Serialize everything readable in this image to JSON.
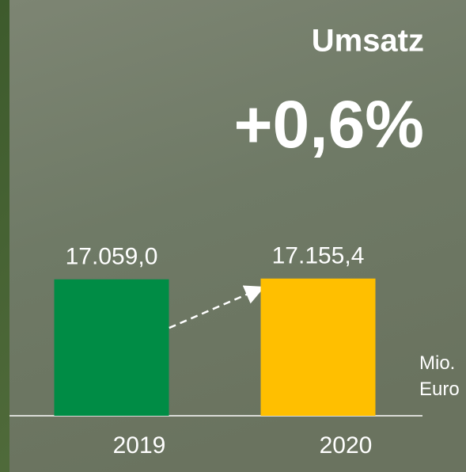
{
  "chart_data": {
    "type": "bar",
    "title": "Umsatz",
    "annotation": "+0,6%",
    "unit_label": "Mio. Euro",
    "categories": [
      "2019",
      "2020"
    ],
    "values": [
      17059.0,
      17155.4
    ],
    "value_labels": [
      "17.059,0",
      "17.155,4"
    ],
    "colors": [
      "#008c45",
      "#ffbf00"
    ],
    "ylim": [
      0,
      20000
    ]
  }
}
